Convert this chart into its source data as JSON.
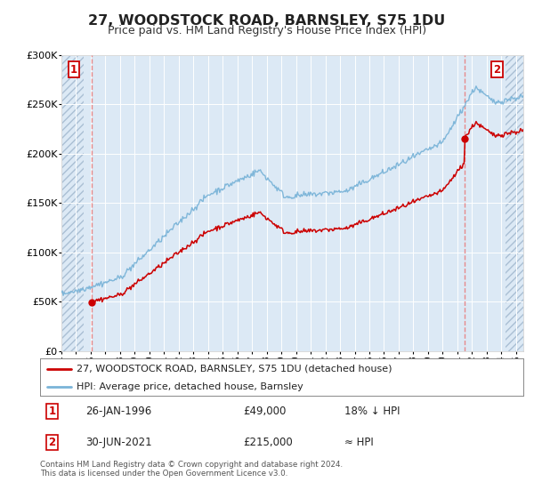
{
  "title": "27, WOODSTOCK ROAD, BARNSLEY, S75 1DU",
  "subtitle": "Price paid vs. HM Land Registry's House Price Index (HPI)",
  "legend_line1": "27, WOODSTOCK ROAD, BARNSLEY, S75 1DU (detached house)",
  "legend_line2": "HPI: Average price, detached house, Barnsley",
  "annotation1_date": "26-JAN-1996",
  "annotation1_price": "£49,000",
  "annotation1_hpi": "18% ↓ HPI",
  "annotation2_date": "30-JUN-2021",
  "annotation2_price": "£215,000",
  "annotation2_hpi": "≈ HPI",
  "footer": "Contains HM Land Registry data © Crown copyright and database right 2024.\nThis data is licensed under the Open Government Licence v3.0.",
  "hpi_color": "#7ab4d8",
  "price_color": "#cc0000",
  "vline_color": "#e88080",
  "bg_color": "#dce9f5",
  "hatch_color": "#aabfd4",
  "grid_color": "#ffffff",
  "marker_color": "#cc0000",
  "box_color": "#cc0000",
  "sale1_year": 1996.07,
  "sale1_value": 49000,
  "sale2_year": 2021.5,
  "sale2_value": 215000,
  "xmin": 1994.0,
  "xmax": 2025.5,
  "ymin": 0,
  "ymax": 300000,
  "hatch_left_end": 1995.5,
  "hatch_right_start": 2024.3
}
